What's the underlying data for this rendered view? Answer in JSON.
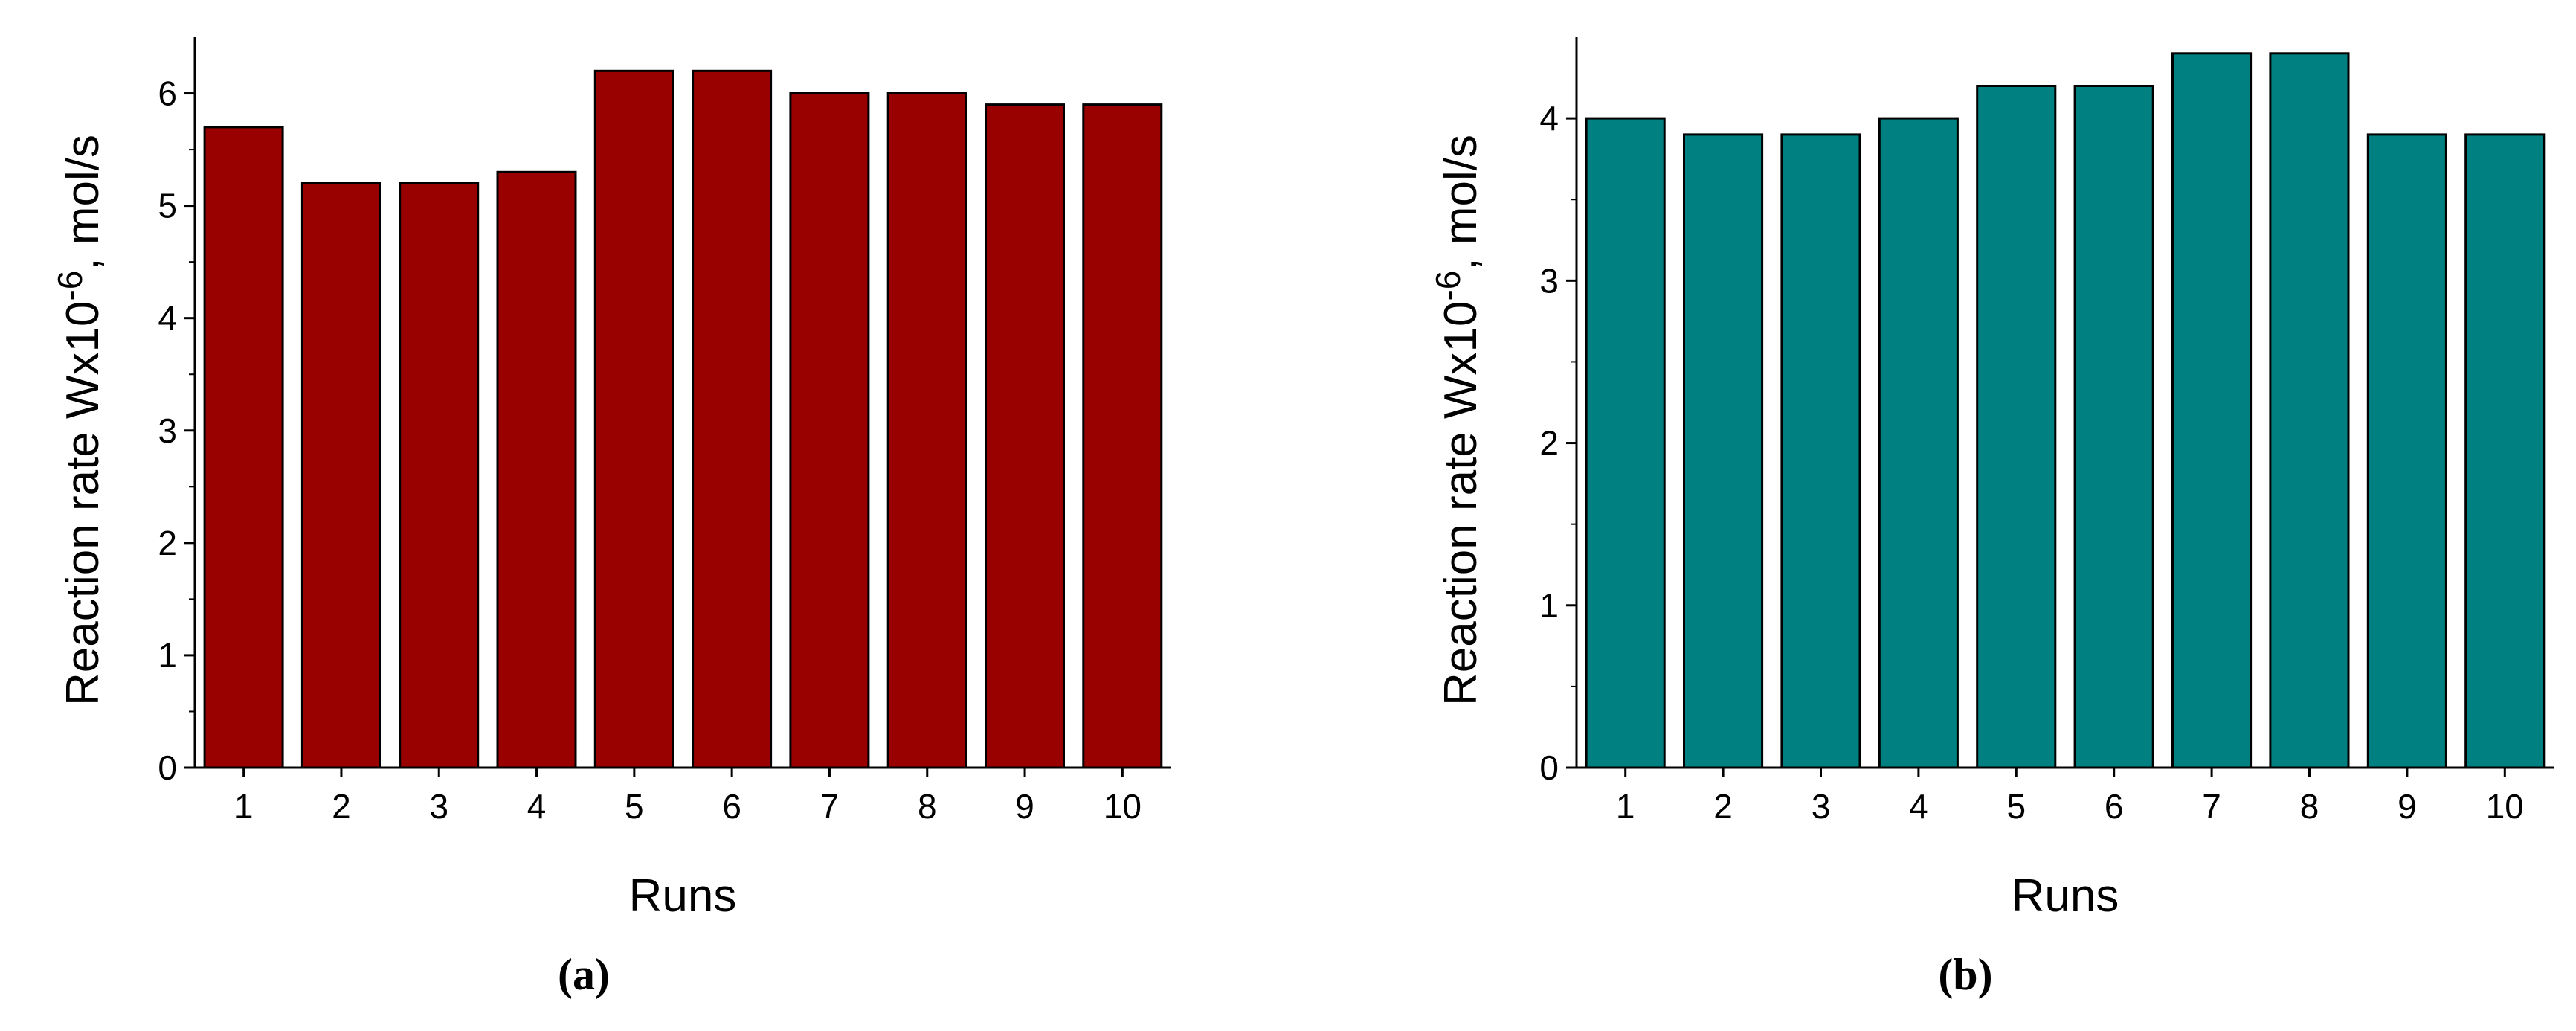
{
  "chart_data": [
    {
      "type": "bar",
      "panel_label": "(a)",
      "categories": [
        "1",
        "2",
        "3",
        "4",
        "5",
        "6",
        "7",
        "8",
        "9",
        "10"
      ],
      "values": [
        5.7,
        5.2,
        5.2,
        5.3,
        6.2,
        6.2,
        6.0,
        6.0,
        5.9,
        5.9
      ],
      "xlabel": "Runs",
      "ylabel": "Reaction rate Wx10",
      "ylabel_exponent": "-6",
      "ylabel_unit": ", mol/s",
      "ylim": [
        0,
        6.5
      ],
      "yticks": [
        "0",
        "1",
        "2",
        "3",
        "4",
        "5",
        "6"
      ],
      "bar_color": "#990000",
      "grid": false
    },
    {
      "type": "bar",
      "panel_label": "(b)",
      "categories": [
        "1",
        "2",
        "3",
        "4",
        "5",
        "6",
        "7",
        "8",
        "9",
        "10"
      ],
      "values": [
        4.0,
        3.9,
        3.9,
        4.0,
        4.2,
        4.2,
        4.4,
        4.4,
        3.9,
        3.9
      ],
      "xlabel": "Runs",
      "ylabel": "Reaction rate Wx10",
      "ylabel_exponent": "-6",
      "ylabel_unit": ", mol/s",
      "ylim": [
        0,
        4.5
      ],
      "yticks": [
        "0",
        "1",
        "2",
        "3",
        "4"
      ],
      "bar_color": "#008080",
      "grid": false
    }
  ]
}
